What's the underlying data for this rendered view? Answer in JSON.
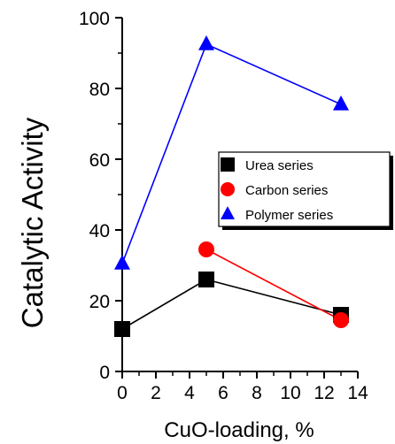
{
  "chart_data": {
    "type": "line",
    "title": "",
    "xlabel": "CuO-loading, %",
    "ylabel": "Catalytic Activity",
    "xlim": [
      0,
      14
    ],
    "ylim": [
      0,
      100
    ],
    "x_ticks": [
      0,
      2,
      4,
      6,
      8,
      10,
      12,
      14
    ],
    "y_ticks": [
      0,
      20,
      40,
      60,
      80,
      100
    ],
    "grid": false,
    "legend_position": "right",
    "series": [
      {
        "name": "Urea series",
        "marker": "square",
        "color": "#000000",
        "line_color": "#000000",
        "x": [
          0,
          5,
          13
        ],
        "y": [
          12,
          26,
          16
        ]
      },
      {
        "name": "Carbon series",
        "marker": "circle",
        "color": "#ff0000",
        "line_color": "#ff0000",
        "x": [
          5,
          13
        ],
        "y": [
          34.5,
          14.5
        ]
      },
      {
        "name": "Polymer series",
        "marker": "triangle",
        "color": "#0000ff",
        "line_color": "#0000ff",
        "x": [
          0,
          5,
          13
        ],
        "y": [
          30.5,
          92.5,
          75.5
        ]
      }
    ]
  }
}
